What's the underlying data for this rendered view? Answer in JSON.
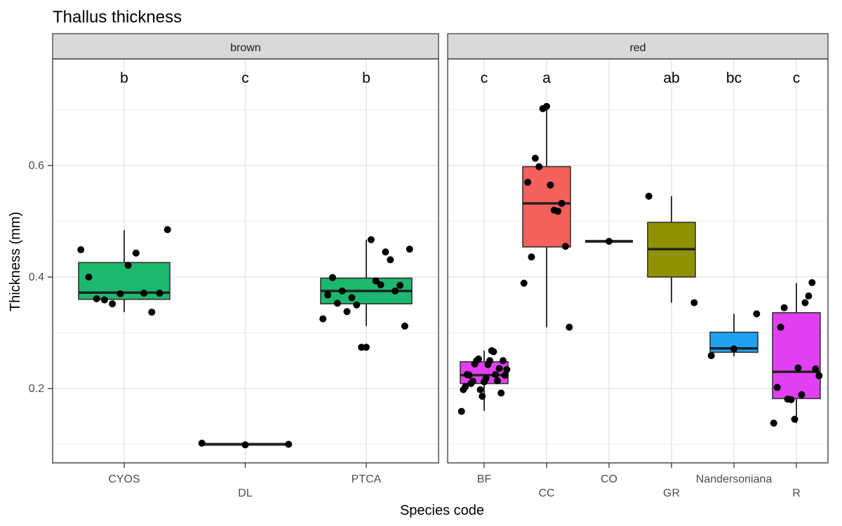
{
  "chart_data": {
    "type": "box",
    "title": "Thallus thickness",
    "xlabel": "Species code",
    "ylabel": "Thickness (mm)",
    "ylim": [
      0.07,
      0.75
    ],
    "yticks": [
      "0.2",
      "0.4",
      "0.6"
    ],
    "grid": true,
    "colors": {
      "green": "#1DB86F",
      "pink": "#E040F0",
      "red": "#F4605C",
      "olive": "#8F9200",
      "blue": "#1FA1F2"
    },
    "facets": [
      {
        "label": "brown",
        "categories": [
          {
            "code": "CYOS",
            "fill": "green",
            "letter": "b",
            "q1": 0.36,
            "median": 0.372,
            "q3": 0.426,
            "whisker_low": 0.337,
            "whisker_high": 0.484,
            "points": [
              0.449,
              0.4,
              0.361,
              0.359,
              0.352,
              0.37,
              0.421,
              0.443,
              0.371,
              0.337,
              0.371,
              0.485
            ]
          },
          {
            "code": "DL",
            "fill": "green",
            "letter": "c",
            "q1": 0.1,
            "median": 0.1,
            "q3": 0.1,
            "whisker_low": 0.1,
            "whisker_high": 0.1,
            "points": [
              0.102,
              0.099,
              0.1
            ]
          },
          {
            "code": "PTCA",
            "fill": "green",
            "letter": "b",
            "q1": 0.352,
            "median": 0.375,
            "q3": 0.398,
            "whisker_low": 0.312,
            "whisker_high": 0.467,
            "points": [
              0.325,
              0.368,
              0.399,
              0.353,
              0.375,
              0.338,
              0.363,
              0.35,
              0.274,
              0.274,
              0.467,
              0.393,
              0.386,
              0.445,
              0.431,
              0.375,
              0.385,
              0.312,
              0.45
            ]
          }
        ]
      },
      {
        "label": "red",
        "categories": [
          {
            "code": "BF",
            "fill": "pink",
            "letter": "c",
            "q1": 0.209,
            "median": 0.224,
            "q3": 0.248,
            "whisker_low": 0.16,
            "whisker_high": 0.268,
            "points": [
              0.159,
              0.198,
              0.203,
              0.225,
              0.224,
              0.209,
              0.213,
              0.244,
              0.25,
              0.253,
              0.198,
              0.186,
              0.212,
              0.218,
              0.243,
              0.25,
              0.268,
              0.266,
              0.225,
              0.214,
              0.236,
              0.192,
              0.25,
              0.224,
              0.234
            ]
          },
          {
            "code": "CC",
            "fill": "red",
            "letter": "a",
            "q1": 0.454,
            "median": 0.532,
            "q3": 0.598,
            "whisker_low": 0.31,
            "whisker_high": 0.706,
            "points": [
              0.389,
              0.57,
              0.436,
              0.613,
              0.598,
              0.702,
              0.706,
              0.565,
              0.52,
              0.518,
              0.532,
              0.455,
              0.31
            ]
          },
          {
            "code": "CO",
            "fill": "red",
            "letter": "",
            "q1": 0.464,
            "median": 0.464,
            "q3": 0.464,
            "whisker_low": 0.464,
            "whisker_high": 0.464,
            "points": [
              0.464
            ]
          },
          {
            "code": "GR",
            "fill": "olive",
            "letter": "ab",
            "q1": 0.4,
            "median": 0.45,
            "q3": 0.498,
            "whisker_low": 0.354,
            "whisker_high": 0.545,
            "points": [
              0.545,
              0.354
            ]
          },
          {
            "code": "Nandersoniana",
            "fill": "blue",
            "letter": "bc",
            "q1": 0.265,
            "median": 0.272,
            "q3": 0.301,
            "whisker_low": 0.258,
            "whisker_high": 0.334,
            "points": [
              0.259,
              0.271,
              0.334
            ]
          },
          {
            "code": "R",
            "fill": "pink",
            "letter": "c",
            "q1": 0.182,
            "median": 0.23,
            "q3": 0.336,
            "whisker_low": 0.138,
            "whisker_high": 0.389,
            "points": [
              0.138,
              0.202,
              0.31,
              0.345,
              0.181,
              0.18,
              0.145,
              0.237,
              0.189,
              0.354,
              0.366,
              0.39,
              0.235,
              0.223
            ]
          }
        ]
      }
    ]
  }
}
